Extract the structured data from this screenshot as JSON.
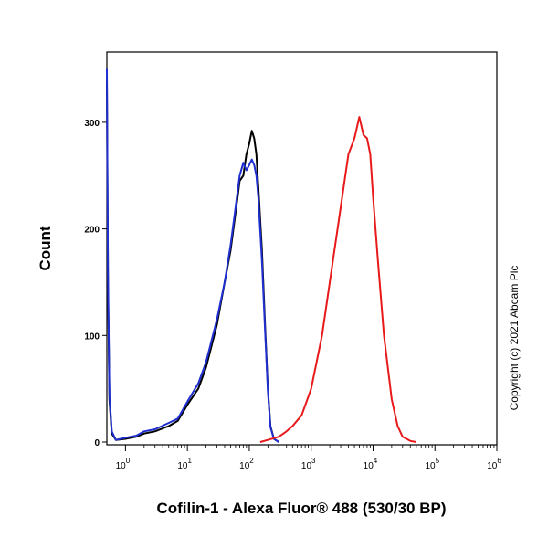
{
  "chart_data": {
    "type": "line",
    "xlabel": "Cofilin-1 - Alexa Fluor® 488 (530/30 BP)",
    "ylabel": "Count",
    "copyright": "Copyright (c) 2021 Abcam Plc",
    "x_scale": "log",
    "xlim": [
      0.5,
      1000000
    ],
    "ylim": [
      0,
      360
    ],
    "x_ticks": [
      {
        "value": 1,
        "base": "10",
        "exp": "0"
      },
      {
        "value": 10,
        "base": "10",
        "exp": "1"
      },
      {
        "value": 100,
        "base": "10",
        "exp": "2"
      },
      {
        "value": 1000,
        "base": "10",
        "exp": "3"
      },
      {
        "value": 10000,
        "base": "10",
        "exp": "4"
      },
      {
        "value": 100000,
        "base": "10",
        "exp": "5"
      },
      {
        "value": 1000000,
        "base": "10",
        "exp": "6"
      }
    ],
    "y_ticks": [
      0,
      100,
      200,
      300
    ],
    "grid": false,
    "series": [
      {
        "color": "#000000",
        "x": [
          0.5,
          0.52,
          0.55,
          0.6,
          0.7,
          1,
          1.5,
          2,
          3,
          5,
          7,
          10,
          15,
          20,
          30,
          40,
          50,
          60,
          70,
          80,
          90,
          100,
          110,
          120,
          130,
          140,
          160,
          180,
          200,
          220,
          250,
          300
        ],
        "y": [
          340,
          150,
          40,
          8,
          2,
          3,
          5,
          8,
          10,
          15,
          20,
          35,
          50,
          70,
          110,
          150,
          180,
          215,
          245,
          250,
          270,
          280,
          292,
          285,
          270,
          240,
          180,
          110,
          50,
          15,
          3,
          0
        ]
      },
      {
        "color": "#1f2fd0",
        "x": [
          0.5,
          0.52,
          0.55,
          0.6,
          0.7,
          1,
          1.5,
          2,
          3,
          5,
          7,
          10,
          15,
          20,
          30,
          40,
          50,
          60,
          70,
          80,
          90,
          100,
          110,
          120,
          130,
          140,
          160,
          180,
          200,
          220,
          250,
          300
        ],
        "y": [
          350,
          160,
          45,
          10,
          2,
          4,
          6,
          10,
          12,
          18,
          22,
          38,
          55,
          75,
          115,
          150,
          185,
          220,
          250,
          262,
          255,
          260,
          265,
          260,
          250,
          230,
          170,
          105,
          48,
          14,
          3,
          0
        ]
      },
      {
        "color": "#e8191a",
        "x": [
          150,
          200,
          300,
          400,
          500,
          700,
          1000,
          1500,
          2000,
          3000,
          4000,
          5000,
          6000,
          7000,
          8000,
          9000,
          10000,
          12000,
          15000,
          20000,
          25000,
          30000,
          40000,
          50000
        ],
        "y": [
          0,
          2,
          5,
          10,
          15,
          25,
          50,
          100,
          150,
          220,
          270,
          285,
          305,
          288,
          285,
          270,
          230,
          170,
          100,
          40,
          15,
          5,
          1,
          0
        ]
      }
    ]
  }
}
